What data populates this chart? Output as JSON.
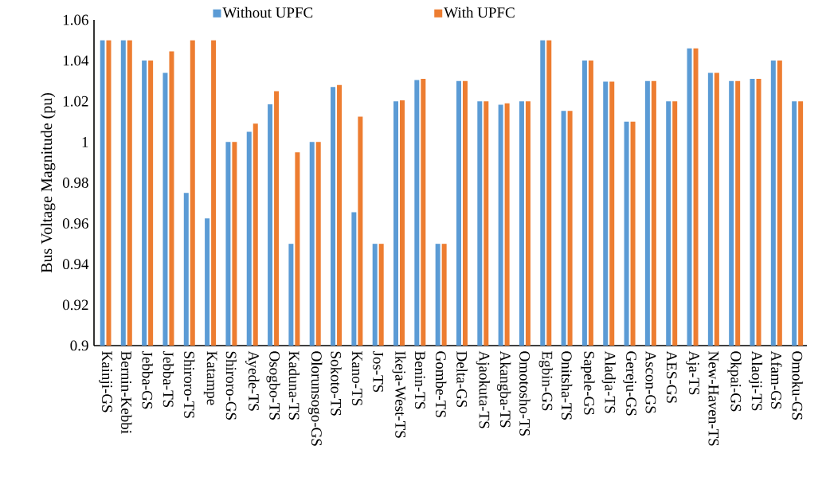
{
  "chart_data": {
    "type": "bar",
    "ylabel": "Bus Voltage Magnitude (pu)",
    "categories": [
      "Kainji-GS",
      "Bernin-Kebbi",
      "Jebba-GS",
      "Jebba-TS",
      "Shiroro-TS",
      "Katampe",
      "Shiroro-GS",
      "Ayede-TS",
      "Osogbo-TS",
      "Kaduna-TS",
      "Olorunsogo-GS",
      "Sokoto-TS",
      "Kano-TS",
      "Jos-TS",
      "Ikeja-West-TS",
      "Benin-TS",
      "Gombe-TS",
      "Delta-GS",
      "Ajaokuta-TS",
      "Akangba-TS",
      "Omotosho-TS",
      "Egbin-GS",
      "Onitsha-TS",
      "Sapele-GS",
      "Aladja-TS",
      "Gereju-GS",
      "Ascon-GS",
      "AES-GS",
      "Aja-TS",
      "New-Haven-TS",
      "Okpai-GS",
      "Alaoji-TS",
      "Afam-GS",
      "Omoku-GS"
    ],
    "series": [
      {
        "name": "Without UPFC",
        "color": "#5b9bd5",
        "values": [
          1.05,
          1.05,
          1.04,
          1.034,
          0.975,
          0.9625,
          1.0,
          1.005,
          1.0185,
          0.95,
          1.0,
          1.027,
          0.9655,
          0.95,
          1.02,
          1.0305,
          0.95,
          1.03,
          1.02,
          1.0183,
          1.02,
          1.05,
          1.0153,
          1.04,
          1.0297,
          1.01,
          1.03,
          1.02,
          1.046,
          1.034,
          1.03,
          1.031,
          1.04,
          1.02
        ]
      },
      {
        "name": "With UPFC",
        "color": "#ed7d31",
        "values": [
          1.05,
          1.05,
          1.04,
          1.0445,
          1.05,
          1.05,
          1.0,
          1.009,
          1.025,
          0.995,
          1.0,
          1.028,
          1.0125,
          0.95,
          1.0205,
          1.031,
          0.95,
          1.03,
          1.02,
          1.019,
          1.02,
          1.05,
          1.0153,
          1.04,
          1.0297,
          1.01,
          1.03,
          1.02,
          1.046,
          1.034,
          1.03,
          1.031,
          1.04,
          1.02
        ]
      }
    ],
    "ylim": [
      0.9,
      1.06
    ],
    "yticks": [
      0.9,
      0.92,
      0.94,
      0.96,
      0.98,
      1,
      1.02,
      1.04,
      1.06
    ],
    "grid": false,
    "legend": "top"
  }
}
